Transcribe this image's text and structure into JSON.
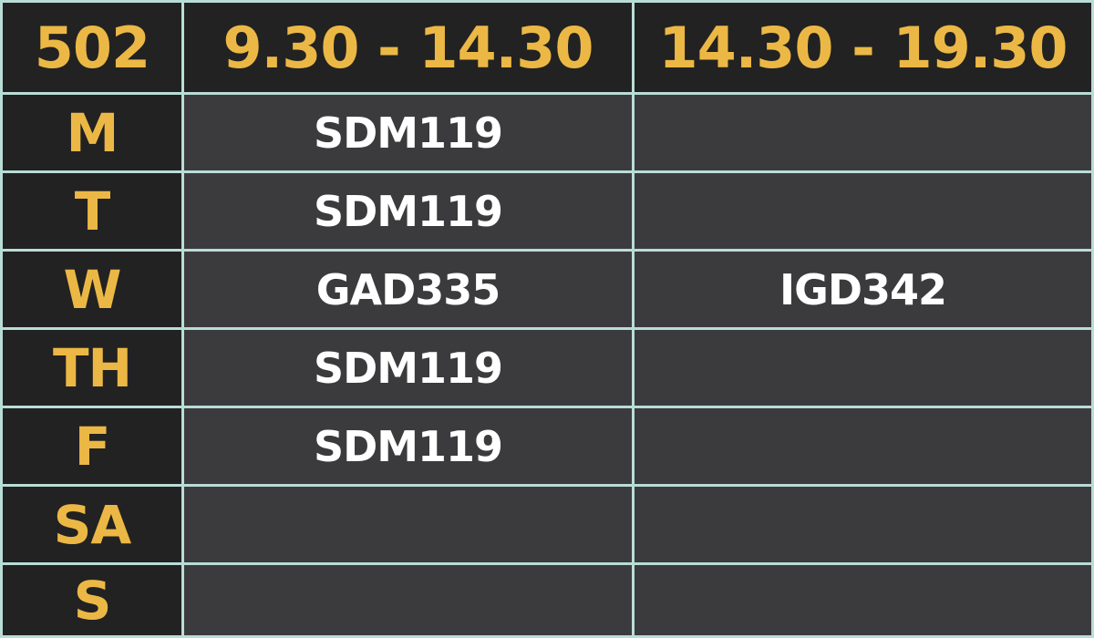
{
  "header": {
    "room": "502",
    "slots": [
      "9.30 - 14.30",
      "14.30 - 19.30"
    ]
  },
  "rows": [
    {
      "day": "M",
      "slot1": "SDM119",
      "slot2": ""
    },
    {
      "day": "T",
      "slot1": "SDM119",
      "slot2": ""
    },
    {
      "day": "W",
      "slot1": "GAD335",
      "slot2": "IGD342"
    },
    {
      "day": "TH",
      "slot1": "SDM119",
      "slot2": ""
    },
    {
      "day": "F",
      "slot1": "SDM119",
      "slot2": ""
    },
    {
      "day": "SA",
      "slot1": "",
      "slot2": ""
    },
    {
      "day": "S",
      "slot1": "",
      "slot2": ""
    }
  ],
  "colors": {
    "accent": "#ecb845",
    "header_bg": "#222222",
    "cell_bg": "#3b3b3d",
    "grid_line": "#b9ddd6",
    "text": "#ffffff"
  }
}
